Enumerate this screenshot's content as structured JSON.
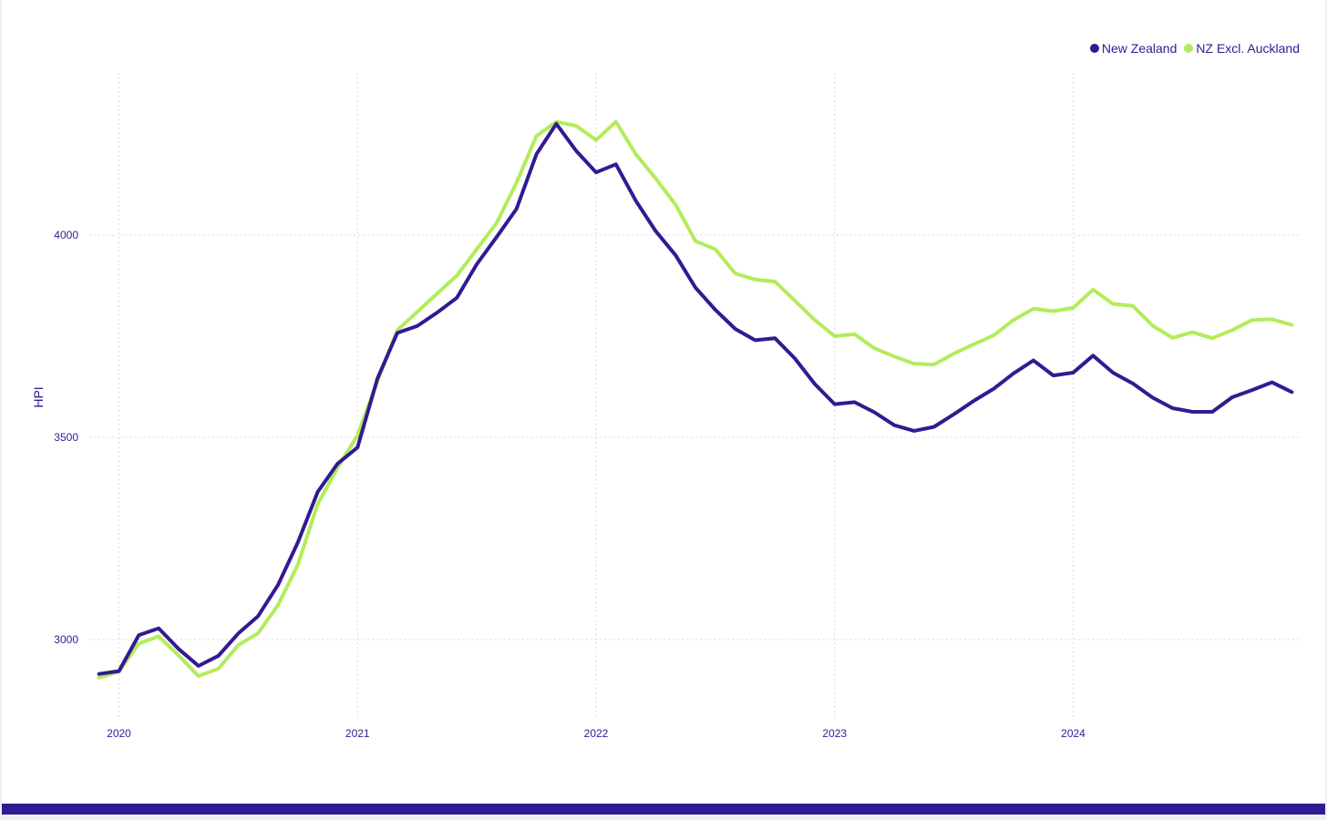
{
  "colors": {
    "accent": "#311b92",
    "series_nz": "#311b92",
    "series_excl": "#b3ec5a",
    "grid": "#d9d9d9"
  },
  "legend": {
    "items": [
      {
        "label": "New Zealand",
        "color": "#311b92"
      },
      {
        "label": "NZ Excl. Auckland",
        "color": "#b3ec5a"
      }
    ]
  },
  "chart_data": {
    "type": "line",
    "title": "",
    "xlabel": "",
    "ylabel": "HPI",
    "x_ticks": [
      "2020",
      "2021",
      "2022",
      "2023",
      "2024"
    ],
    "y_ticks": [
      3000,
      3500,
      4000
    ],
    "ylim": [
      2820,
      4400
    ],
    "xlim": [
      "2019-12-01",
      "2024-12-31"
    ],
    "x": [
      "2019-12",
      "2020-01",
      "2020-02",
      "2020-03",
      "2020-04",
      "2020-05",
      "2020-06",
      "2020-07",
      "2020-08",
      "2020-09",
      "2020-10",
      "2020-11",
      "2020-12",
      "2021-01",
      "2021-02",
      "2021-03",
      "2021-04",
      "2021-05",
      "2021-06",
      "2021-07",
      "2021-08",
      "2021-09",
      "2021-10",
      "2021-11",
      "2021-12",
      "2022-01",
      "2022-02",
      "2022-03",
      "2022-04",
      "2022-05",
      "2022-06",
      "2022-07",
      "2022-08",
      "2022-09",
      "2022-10",
      "2022-11",
      "2022-12",
      "2023-01",
      "2023-02",
      "2023-03",
      "2023-04",
      "2023-05",
      "2023-06",
      "2023-07",
      "2023-08",
      "2023-09",
      "2023-10",
      "2023-11",
      "2023-12",
      "2024-01",
      "2024-02",
      "2024-03",
      "2024-04",
      "2024-05",
      "2024-06",
      "2024-07",
      "2024-08",
      "2024-09",
      "2024-10",
      "2024-11",
      "2024-12"
    ],
    "grid": true,
    "legend_position": "top-right",
    "series": [
      {
        "name": "New Zealand",
        "color": "#311b92",
        "values": [
          2915,
          2922,
          3011,
          3028,
          2977,
          2935,
          2960,
          3015,
          3058,
          3135,
          3240,
          3365,
          3435,
          3475,
          3645,
          3758,
          3775,
          3808,
          3845,
          3928,
          3995,
          4065,
          4200,
          4275,
          4208,
          4155,
          4175,
          4085,
          4010,
          3950,
          3870,
          3815,
          3768,
          3740,
          3745,
          3695,
          3632,
          3582,
          3587,
          3562,
          3530,
          3516,
          3526,
          3557,
          3590,
          3620,
          3658,
          3690,
          3653,
          3660,
          3702,
          3660,
          3633,
          3598,
          3572,
          3563,
          3563,
          3599,
          3617,
          3636,
          3612
        ]
      },
      {
        "name": "NZ Excl. Auckland",
        "color": "#b3ec5a",
        "values": [
          2906,
          2921,
          2990,
          3008,
          2961,
          2910,
          2928,
          2986,
          3016,
          3085,
          3185,
          3335,
          3425,
          3505,
          3638,
          3765,
          3810,
          3855,
          3900,
          3965,
          4030,
          4130,
          4245,
          4280,
          4270,
          4235,
          4280,
          4200,
          4140,
          4075,
          3985,
          3965,
          3905,
          3890,
          3885,
          3838,
          3790,
          3750,
          3755,
          3720,
          3700,
          3682,
          3680,
          3707,
          3730,
          3752,
          3790,
          3818,
          3812,
          3820,
          3865,
          3830,
          3825,
          3776,
          3746,
          3760,
          3745,
          3765,
          3790,
          3792,
          3778
        ]
      }
    ]
  }
}
